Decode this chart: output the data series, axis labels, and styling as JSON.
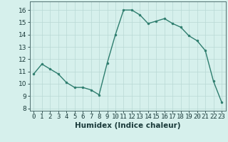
{
  "x": [
    0,
    1,
    2,
    3,
    4,
    5,
    6,
    7,
    8,
    9,
    10,
    11,
    12,
    13,
    14,
    15,
    16,
    17,
    18,
    19,
    20,
    21,
    22,
    23
  ],
  "y": [
    10.8,
    11.6,
    11.2,
    10.8,
    10.1,
    9.7,
    9.7,
    9.5,
    9.1,
    11.7,
    14.0,
    16.0,
    16.0,
    15.6,
    14.9,
    15.1,
    15.3,
    14.9,
    14.6,
    13.9,
    13.5,
    12.7,
    10.2,
    8.5
  ],
  "line_color": "#2e7d6e",
  "marker": "o",
  "marker_size": 2.0,
  "line_width": 1.0,
  "xlabel": "Humidex (Indice chaleur)",
  "xlabel_fontsize": 7.5,
  "ylabel_ticks": [
    8,
    9,
    10,
    11,
    12,
    13,
    14,
    15,
    16
  ],
  "ylim": [
    7.8,
    16.7
  ],
  "xlim": [
    -0.5,
    23.5
  ],
  "xtick_labels": [
    "0",
    "1",
    "2",
    "3",
    "4",
    "5",
    "6",
    "7",
    "8",
    "9",
    "10",
    "11",
    "12",
    "13",
    "14",
    "15",
    "16",
    "17",
    "18",
    "19",
    "20",
    "21",
    "22",
    "23"
  ],
  "bg_color": "#d6f0ec",
  "grid_color": "#b8d8d4",
  "tick_fontsize": 6.5,
  "spine_color": "#507070"
}
